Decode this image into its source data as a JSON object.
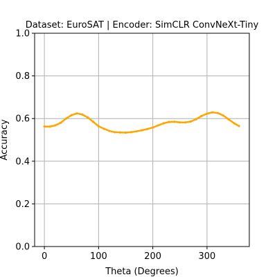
{
  "chart_data": {
    "type": "line",
    "title": "Dataset: EuroSAT | Encoder: SimCLR ConvNeXt-Tiny",
    "xlabel": "Theta (Degrees)",
    "ylabel": "Accuracy",
    "xlim": [
      -18,
      378
    ],
    "ylim": [
      0.0,
      1.0
    ],
    "xticks": [
      0,
      100,
      200,
      300
    ],
    "yticks": [
      0.0,
      0.2,
      0.4,
      0.6,
      0.8,
      1.0
    ],
    "xtick_labels": [
      "0",
      "100",
      "200",
      "300"
    ],
    "ytick_labels": [
      "0.0",
      "0.2",
      "0.4",
      "0.6",
      "0.8",
      "1.0"
    ],
    "grid": true,
    "legend": null,
    "series": [
      {
        "color": "#ffa500",
        "x": [
          0,
          10,
          20,
          30,
          40,
          50,
          60,
          70,
          80,
          90,
          100,
          110,
          120,
          130,
          140,
          150,
          160,
          170,
          180,
          190,
          200,
          210,
          220,
          230,
          240,
          250,
          260,
          270,
          280,
          290,
          300,
          310,
          320,
          330,
          340,
          350,
          359
        ],
        "y": [
          0.563,
          0.562,
          0.568,
          0.58,
          0.6,
          0.616,
          0.624,
          0.619,
          0.605,
          0.585,
          0.564,
          0.552,
          0.542,
          0.536,
          0.535,
          0.534,
          0.536,
          0.54,
          0.545,
          0.551,
          0.558,
          0.568,
          0.578,
          0.584,
          0.585,
          0.582,
          0.582,
          0.586,
          0.597,
          0.612,
          0.623,
          0.629,
          0.626,
          0.614,
          0.596,
          0.578,
          0.565
        ]
      }
    ]
  }
}
